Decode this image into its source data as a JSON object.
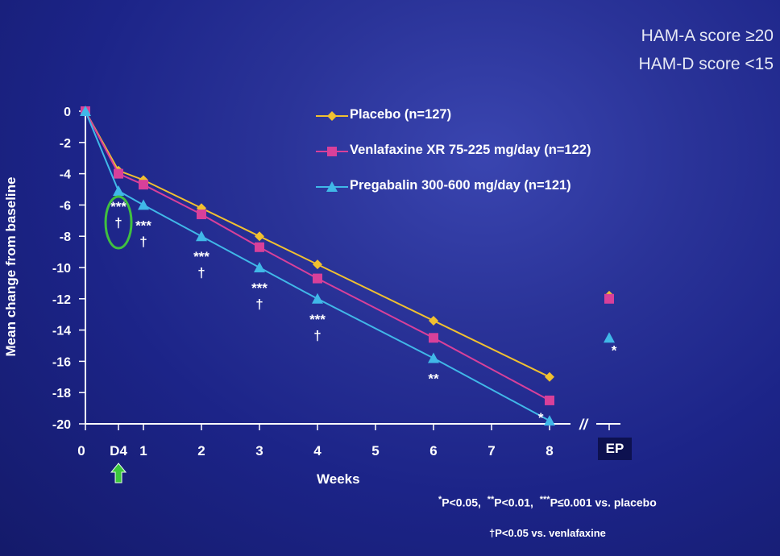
{
  "criteria": {
    "line1": "HAM-A score  ≥20",
    "line2": "HAM-D score <15"
  },
  "chart_data": {
    "type": "line",
    "xlabel": "Weeks",
    "ylabel": "Mean change from baseline",
    "ylim": [
      -20,
      0
    ],
    "yticks": [
      "0",
      "-2",
      "-4",
      "-6",
      "-8",
      "-10",
      "-12",
      "-14",
      "-16",
      "-18",
      "-20"
    ],
    "xticks": [
      "0",
      "D4",
      "1",
      "2",
      "3",
      "4",
      "5",
      "6",
      "7",
      "8"
    ],
    "ep_label": "EP",
    "axis_break": "//",
    "legend_position": "top",
    "series": [
      {
        "name": "Placebo (n=127)",
        "color": "#f0c030",
        "marker": "diamond",
        "x": [
          0,
          0.57,
          1,
          2,
          3,
          4,
          6,
          8
        ],
        "y": [
          0,
          -3.8,
          -4.4,
          -6.2,
          -8.0,
          -9.8,
          -13.4,
          -17.0
        ],
        "ep": -11.8
      },
      {
        "name": "Venlafaxine XR 75-225 mg/day (n=122)",
        "color": "#d8409a",
        "marker": "square",
        "x": [
          0,
          0.57,
          1,
          2,
          3,
          4,
          6,
          8
        ],
        "y": [
          0,
          -4.0,
          -4.7,
          -6.6,
          -8.7,
          -10.7,
          -14.5,
          -18.5
        ],
        "ep": -12.0
      },
      {
        "name": "Pregabalin 300-600 mg/day (n=121)",
        "color": "#40b8e8",
        "marker": "triangle",
        "x": [
          0,
          0.57,
          1,
          2,
          3,
          4,
          6,
          8
        ],
        "y": [
          0,
          -5.1,
          -6.0,
          -8.0,
          -10.0,
          -12.0,
          -15.8,
          -19.8
        ],
        "ep": -14.5
      }
    ],
    "annotations": [
      {
        "x": 0.57,
        "y": -6.4,
        "lines": [
          "***",
          "†"
        ]
      },
      {
        "x": 1,
        "y": -7.6,
        "lines": [
          "***",
          "†"
        ]
      },
      {
        "x": 2,
        "y": -9.6,
        "lines": [
          "***",
          "†"
        ]
      },
      {
        "x": 3,
        "y": -11.6,
        "lines": [
          "***",
          "†"
        ]
      },
      {
        "x": 4,
        "y": -13.6,
        "lines": [
          "***",
          "†"
        ]
      },
      {
        "x": 6,
        "y": -17.4,
        "lines": [
          "**"
        ]
      },
      {
        "x": 7.85,
        "y": -19.9,
        "lines": [
          "*"
        ]
      },
      {
        "x": "EP",
        "y": -15.6,
        "lines": [
          "*"
        ]
      }
    ],
    "highlight": {
      "label": "D4",
      "note": "green circle around D4 annotation and green arrow under D4"
    }
  },
  "footnotes": {
    "line1_sym1": "*",
    "line1_text1": "P<0.05,",
    "line1_sym2": "**",
    "line1_text2": "P<0.01,",
    "line1_sym3": "***",
    "line1_text3": "P≤0.001 vs. placebo",
    "line2": "†P<0.05 vs. venlafaxine"
  },
  "colors": {
    "background": "#2a3398",
    "axis": "#ffffff",
    "highlight": "#40c040"
  }
}
